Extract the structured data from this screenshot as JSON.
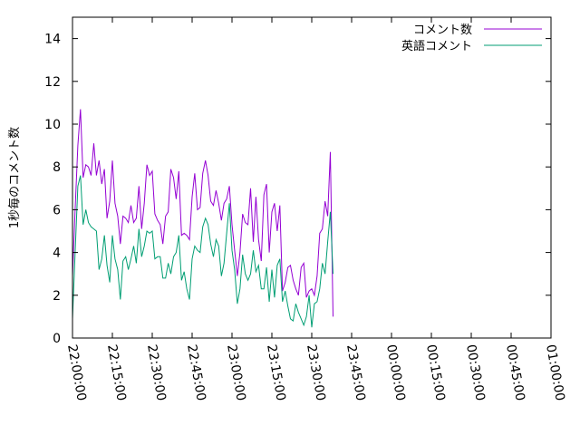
{
  "chart_data": {
    "type": "line",
    "title": "",
    "xlabel": "",
    "ylabel": "1秒毎のコメント数",
    "ylim": [
      0,
      15
    ],
    "xlim": [
      "22:00:00",
      "01:00:00"
    ],
    "y_ticks": [
      "0",
      "2",
      "4",
      "6",
      "8",
      "10",
      "12",
      "14"
    ],
    "x_ticks": [
      "22:00:00",
      "22:15:00",
      "22:30:00",
      "22:45:00",
      "23:00:00",
      "23:15:00",
      "23:30:00",
      "23:45:00",
      "00:00:00",
      "00:15:00",
      "00:30:00",
      "00:45:00",
      "01:00:00"
    ],
    "grid": false,
    "legend_position": "top-right",
    "series": [
      {
        "name": "コメント数",
        "color": "#9400d3",
        "points": [
          [
            "22:00:00",
            2.9
          ],
          [
            "22:01:00",
            6.0
          ],
          [
            "22:02:00",
            9.0
          ],
          [
            "22:03:00",
            10.7
          ],
          [
            "22:04:00",
            7.5
          ],
          [
            "22:05:00",
            8.1
          ],
          [
            "22:06:00",
            8.0
          ],
          [
            "22:07:00",
            7.6
          ],
          [
            "22:08:00",
            9.1
          ],
          [
            "22:09:00",
            7.6
          ],
          [
            "22:10:00",
            8.3
          ],
          [
            "22:11:00",
            7.2
          ],
          [
            "22:12:00",
            7.9
          ],
          [
            "22:13:00",
            5.6
          ],
          [
            "22:14:00",
            6.4
          ],
          [
            "22:15:00",
            8.3
          ],
          [
            "22:16:00",
            6.3
          ],
          [
            "22:17:00",
            5.7
          ],
          [
            "22:18:00",
            4.4
          ],
          [
            "22:19:00",
            5.7
          ],
          [
            "22:20:00",
            5.6
          ],
          [
            "22:21:00",
            5.4
          ],
          [
            "22:22:00",
            6.2
          ],
          [
            "22:23:00",
            5.4
          ],
          [
            "22:24:00",
            5.6
          ],
          [
            "22:25:00",
            7.1
          ],
          [
            "22:26:00",
            5.1
          ],
          [
            "22:27:00",
            6.3
          ],
          [
            "22:28:00",
            8.1
          ],
          [
            "22:29:00",
            7.6
          ],
          [
            "22:30:00",
            7.8
          ],
          [
            "22:31:00",
            5.8
          ],
          [
            "22:32:00",
            5.5
          ],
          [
            "22:33:00",
            5.3
          ],
          [
            "22:34:00",
            4.4
          ],
          [
            "22:35:00",
            5.7
          ],
          [
            "22:36:00",
            5.9
          ],
          [
            "22:37:00",
            7.9
          ],
          [
            "22:38:00",
            7.5
          ],
          [
            "22:39:00",
            6.5
          ],
          [
            "22:40:00",
            7.8
          ],
          [
            "22:41:00",
            4.8
          ],
          [
            "22:42:00",
            4.9
          ],
          [
            "22:43:00",
            4.8
          ],
          [
            "22:44:00",
            4.6
          ],
          [
            "22:45:00",
            6.6
          ],
          [
            "22:46:00",
            7.7
          ],
          [
            "22:47:00",
            6.0
          ],
          [
            "22:48:00",
            6.1
          ],
          [
            "22:49:00",
            7.7
          ],
          [
            "22:50:00",
            8.3
          ],
          [
            "22:51:00",
            7.6
          ],
          [
            "22:52:00",
            6.4
          ],
          [
            "22:53:00",
            6.2
          ],
          [
            "22:54:00",
            6.9
          ],
          [
            "22:55:00",
            6.3
          ],
          [
            "22:56:00",
            5.5
          ],
          [
            "22:57:00",
            6.3
          ],
          [
            "22:58:00",
            6.5
          ],
          [
            "22:59:00",
            7.1
          ],
          [
            "23:00:00",
            5.3
          ],
          [
            "23:01:00",
            4.1
          ],
          [
            "23:02:00",
            2.9
          ],
          [
            "23:03:00",
            4.0
          ],
          [
            "23:04:00",
            5.8
          ],
          [
            "23:05:00",
            5.4
          ],
          [
            "23:06:00",
            5.3
          ],
          [
            "23:07:00",
            7.0
          ],
          [
            "23:08:00",
            4.5
          ],
          [
            "23:09:00",
            6.6
          ],
          [
            "23:10:00",
            4.6
          ],
          [
            "23:11:00",
            3.6
          ],
          [
            "23:12:00",
            6.7
          ],
          [
            "23:13:00",
            7.2
          ],
          [
            "23:14:00",
            4.0
          ],
          [
            "23:15:00",
            5.9
          ],
          [
            "23:16:00",
            6.3
          ],
          [
            "23:17:00",
            5.0
          ],
          [
            "23:18:00",
            6.2
          ],
          [
            "23:19:00",
            2.2
          ],
          [
            "23:20:00",
            2.6
          ],
          [
            "23:21:00",
            3.3
          ],
          [
            "23:22:00",
            3.4
          ],
          [
            "23:23:00",
            2.7
          ],
          [
            "23:24:00",
            2.3
          ],
          [
            "23:25:00",
            2.0
          ],
          [
            "23:26:00",
            3.3
          ],
          [
            "23:27:00",
            3.5
          ],
          [
            "23:28:00",
            1.9
          ],
          [
            "23:29:00",
            2.2
          ],
          [
            "23:30:00",
            2.3
          ],
          [
            "23:31:00",
            2.0
          ],
          [
            "23:32:00",
            2.9
          ],
          [
            "23:33:00",
            4.9
          ],
          [
            "23:34:00",
            5.1
          ],
          [
            "23:35:00",
            6.4
          ],
          [
            "23:36:00",
            5.7
          ],
          [
            "23:37:00",
            8.7
          ],
          [
            "23:38:00",
            1.0
          ]
        ]
      },
      {
        "name": "英語コメント",
        "color": "#009e73",
        "points": [
          [
            "22:00:00",
            0.9
          ],
          [
            "22:01:00",
            4.0
          ],
          [
            "22:02:00",
            7.1
          ],
          [
            "22:03:00",
            7.6
          ],
          [
            "22:04:00",
            5.3
          ],
          [
            "22:05:00",
            6.0
          ],
          [
            "22:06:00",
            5.4
          ],
          [
            "22:07:00",
            5.2
          ],
          [
            "22:08:00",
            5.1
          ],
          [
            "22:09:00",
            5.0
          ],
          [
            "22:10:00",
            3.2
          ],
          [
            "22:11:00",
            3.7
          ],
          [
            "22:12:00",
            4.8
          ],
          [
            "22:13:00",
            3.4
          ],
          [
            "22:14:00",
            2.6
          ],
          [
            "22:15:00",
            4.8
          ],
          [
            "22:16:00",
            3.7
          ],
          [
            "22:17:00",
            3.2
          ],
          [
            "22:18:00",
            1.8
          ],
          [
            "22:19:00",
            3.6
          ],
          [
            "22:20:00",
            3.8
          ],
          [
            "22:21:00",
            3.2
          ],
          [
            "22:22:00",
            3.7
          ],
          [
            "22:23:00",
            4.3
          ],
          [
            "22:24:00",
            3.5
          ],
          [
            "22:25:00",
            5.1
          ],
          [
            "22:26:00",
            3.8
          ],
          [
            "22:27:00",
            4.3
          ],
          [
            "22:28:00",
            5.0
          ],
          [
            "22:29:00",
            4.9
          ],
          [
            "22:30:00",
            5.0
          ],
          [
            "22:31:00",
            3.7
          ],
          [
            "22:32:00",
            3.8
          ],
          [
            "22:33:00",
            3.8
          ],
          [
            "22:34:00",
            2.8
          ],
          [
            "22:35:00",
            2.8
          ],
          [
            "22:36:00",
            3.5
          ],
          [
            "22:37:00",
            3.0
          ],
          [
            "22:38:00",
            3.8
          ],
          [
            "22:39:00",
            4.0
          ],
          [
            "22:40:00",
            4.8
          ],
          [
            "22:41:00",
            2.7
          ],
          [
            "22:42:00",
            3.1
          ],
          [
            "22:43:00",
            2.3
          ],
          [
            "22:44:00",
            1.8
          ],
          [
            "22:45:00",
            3.7
          ],
          [
            "22:46:00",
            4.3
          ],
          [
            "22:47:00",
            4.1
          ],
          [
            "22:48:00",
            4.0
          ],
          [
            "22:49:00",
            5.2
          ],
          [
            "22:50:00",
            5.6
          ],
          [
            "22:51:00",
            5.3
          ],
          [
            "22:52:00",
            4.4
          ],
          [
            "22:53:00",
            3.8
          ],
          [
            "22:54:00",
            4.6
          ],
          [
            "22:55:00",
            4.3
          ],
          [
            "22:56:00",
            2.9
          ],
          [
            "22:57:00",
            3.5
          ],
          [
            "22:58:00",
            4.9
          ],
          [
            "22:59:00",
            6.3
          ],
          [
            "23:00:00",
            4.1
          ],
          [
            "23:01:00",
            3.2
          ],
          [
            "23:02:00",
            1.6
          ],
          [
            "23:03:00",
            2.3
          ],
          [
            "23:04:00",
            3.9
          ],
          [
            "23:05:00",
            3.0
          ],
          [
            "23:06:00",
            2.7
          ],
          [
            "23:07:00",
            3.0
          ],
          [
            "23:08:00",
            4.1
          ],
          [
            "23:09:00",
            3.1
          ],
          [
            "23:10:00",
            3.4
          ],
          [
            "23:11:00",
            2.3
          ],
          [
            "23:12:00",
            2.3
          ],
          [
            "23:13:00",
            3.3
          ],
          [
            "23:14:00",
            1.7
          ],
          [
            "23:15:00",
            3.2
          ],
          [
            "23:16:00",
            1.9
          ],
          [
            "23:17:00",
            3.4
          ],
          [
            "23:18:00",
            3.7
          ],
          [
            "23:19:00",
            1.7
          ],
          [
            "23:20:00",
            2.2
          ],
          [
            "23:21:00",
            1.5
          ],
          [
            "23:22:00",
            0.9
          ],
          [
            "23:23:00",
            0.8
          ],
          [
            "23:24:00",
            1.6
          ],
          [
            "23:25:00",
            1.2
          ],
          [
            "23:26:00",
            0.9
          ],
          [
            "23:27:00",
            0.6
          ],
          [
            "23:28:00",
            1.0
          ],
          [
            "23:29:00",
            2.0
          ],
          [
            "23:30:00",
            0.5
          ],
          [
            "23:31:00",
            1.6
          ],
          [
            "23:32:00",
            1.7
          ],
          [
            "23:33:00",
            2.3
          ],
          [
            "23:34:00",
            3.5
          ],
          [
            "23:35:00",
            3.0
          ],
          [
            "23:36:00",
            4.5
          ],
          [
            "23:37:00",
            5.9
          ],
          [
            "23:38:00",
            3.0
          ]
        ]
      }
    ]
  }
}
